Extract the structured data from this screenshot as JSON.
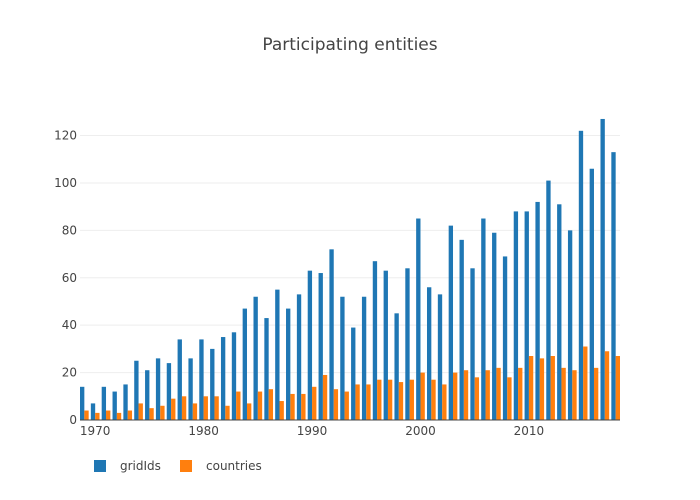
{
  "chart_data": {
    "type": "bar",
    "title": "Participating entities",
    "x": [
      1969,
      1970,
      1971,
      1972,
      1973,
      1974,
      1975,
      1976,
      1977,
      1978,
      1979,
      1980,
      1981,
      1982,
      1983,
      1984,
      1985,
      1986,
      1987,
      1988,
      1989,
      1990,
      1991,
      1992,
      1993,
      1994,
      1995,
      1996,
      1997,
      1998,
      1999,
      2000,
      2001,
      2002,
      2003,
      2004,
      2005,
      2006,
      2007,
      2008,
      2009,
      2010,
      2011,
      2012,
      2013,
      2014,
      2015,
      2016,
      2017,
      2018
    ],
    "xticks": [
      "1970",
      "1980",
      "1990",
      "2000",
      "2010"
    ],
    "xtick_values": [
      1970,
      1980,
      1990,
      2000,
      2010
    ],
    "yticks": [
      0,
      20,
      40,
      60,
      80,
      100,
      120
    ],
    "ylim": [
      0,
      135
    ],
    "xlim": [
      1968.6,
      2018.4
    ],
    "grid": true,
    "legend": "bottom-left",
    "series": [
      {
        "name": "gridIds",
        "color": "#1f77b4",
        "values": [
          14,
          7,
          14,
          12,
          15,
          25,
          21,
          26,
          24,
          34,
          26,
          34,
          30,
          35,
          37,
          47,
          52,
          43,
          55,
          47,
          53,
          63,
          62,
          72,
          52,
          39,
          52,
          67,
          63,
          45,
          64,
          85,
          56,
          53,
          82,
          76,
          64,
          85,
          79,
          69,
          88,
          88,
          92,
          101,
          91,
          80,
          122,
          106,
          127,
          113
        ]
      },
      {
        "name": "countries",
        "color": "#ff7f0e",
        "values": [
          4,
          3,
          4,
          3,
          4,
          7,
          5,
          6,
          9,
          10,
          7,
          10,
          10,
          6,
          12,
          7,
          12,
          13,
          8,
          11,
          11,
          14,
          19,
          13,
          12,
          15,
          15,
          17,
          17,
          16,
          17,
          20,
          17,
          15,
          20,
          21,
          18,
          21,
          22,
          18,
          22,
          27,
          26,
          27,
          22,
          21,
          31,
          22,
          29,
          27
        ]
      }
    ]
  }
}
